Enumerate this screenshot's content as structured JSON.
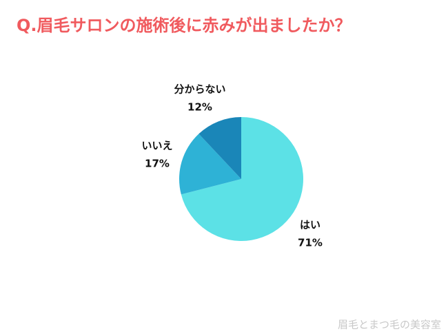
{
  "chart_data": {
    "type": "pie",
    "title": "Q.眉毛サロンの施術後に赤みが出ましたか？",
    "categories": [
      "はい",
      "いいえ",
      "分からない"
    ],
    "values": [
      71,
      17,
      12
    ],
    "value_labels": [
      "71%",
      "17%",
      "12%"
    ],
    "colors": [
      "#5ce1e6",
      "#2eb2d6",
      "#1a86b8"
    ],
    "watermark": "眉毛とまつ毛の美容室"
  }
}
